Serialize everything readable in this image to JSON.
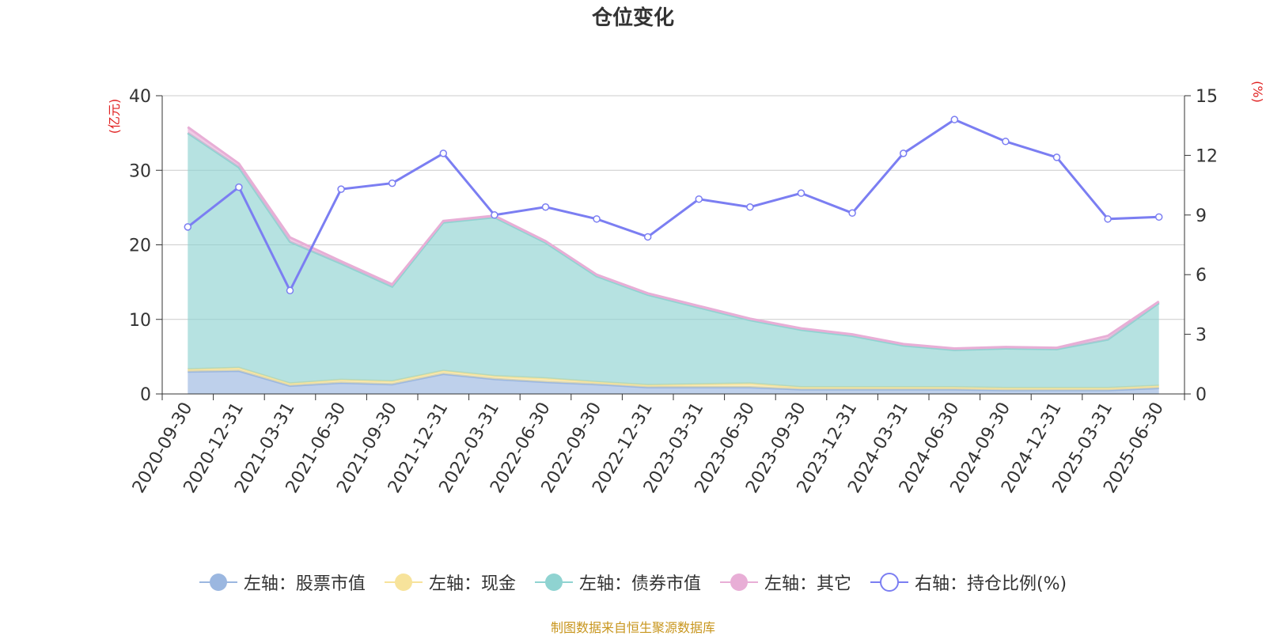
{
  "chart_data": {
    "type": "area",
    "title": "仓位变化",
    "left_axis": {
      "label": "(亿元)",
      "min": 0,
      "max": 40,
      "ticks": [
        0,
        10,
        20,
        30,
        40
      ]
    },
    "right_axis": {
      "label": "(%)",
      "min": 0,
      "max": 15,
      "ticks": [
        0,
        3,
        6,
        9,
        12,
        15
      ]
    },
    "categories": [
      "2020-09-30",
      "2020-12-31",
      "2021-03-31",
      "2021-06-30",
      "2021-09-30",
      "2021-12-31",
      "2022-03-31",
      "2022-06-30",
      "2022-09-30",
      "2022-12-31",
      "2023-03-31",
      "2023-06-30",
      "2023-09-30",
      "2023-12-31",
      "2024-03-31",
      "2024-06-30",
      "2024-09-30",
      "2024-12-31",
      "2025-03-31",
      "2025-06-30"
    ],
    "stacked_series": [
      {
        "name": "左轴：股票市值",
        "color": "#9bb7e0",
        "values": [
          3.0,
          3.1,
          1.1,
          1.5,
          1.3,
          2.7,
          2.0,
          1.6,
          1.3,
          0.9,
          0.9,
          0.9,
          0.6,
          0.6,
          0.6,
          0.6,
          0.5,
          0.5,
          0.5,
          0.8
        ]
      },
      {
        "name": "左轴：现金",
        "color": "#f7e39b",
        "values": [
          0.3,
          0.4,
          0.3,
          0.4,
          0.4,
          0.4,
          0.4,
          0.5,
          0.3,
          0.3,
          0.4,
          0.5,
          0.3,
          0.3,
          0.3,
          0.3,
          0.3,
          0.3,
          0.3,
          0.3
        ]
      },
      {
        "name": "左轴：债券市值",
        "color": "#8fd3d1",
        "values": [
          31.7,
          26.9,
          19.0,
          15.6,
          12.7,
          19.9,
          21.3,
          18.2,
          14.2,
          12.1,
          10.3,
          8.5,
          7.7,
          6.9,
          5.6,
          5.0,
          5.3,
          5.2,
          6.5,
          11.1
        ]
      },
      {
        "name": "左轴：其它",
        "color": "#e8aed6",
        "values": [
          0.8,
          0.5,
          0.6,
          0.3,
          0.3,
          0.2,
          0.2,
          0.2,
          0.2,
          0.2,
          0.2,
          0.2,
          0.2,
          0.2,
          0.2,
          0.2,
          0.2,
          0.2,
          0.5,
          0.2
        ]
      }
    ],
    "line_series": {
      "name": "右轴：持仓比例(%)",
      "axis": "right",
      "color": "#7b7ef2",
      "values": [
        8.4,
        10.4,
        5.2,
        10.3,
        10.6,
        12.1,
        9.0,
        9.4,
        8.8,
        7.9,
        9.8,
        9.4,
        10.1,
        9.1,
        12.1,
        13.8,
        12.7,
        11.9,
        8.8,
        8.9
      ]
    },
    "grid": true,
    "legend_position": "bottom"
  },
  "legend": [
    {
      "label": "左轴：股票市值",
      "icon": "filled-circle-icon",
      "color": "#9bb7e0"
    },
    {
      "label": "左轴：现金",
      "icon": "filled-circle-icon",
      "color": "#f7e39b"
    },
    {
      "label": "左轴：债券市值",
      "icon": "filled-circle-icon",
      "color": "#8fd3d1"
    },
    {
      "label": "左轴：其它",
      "icon": "filled-circle-icon",
      "color": "#e8aed6"
    },
    {
      "label": "右轴：持仓比例(%)",
      "icon": "hollow-circle-icon",
      "color": "#7b7ef2"
    }
  ],
  "source": "制图数据来自恒生聚源数据库",
  "colors": {
    "axis_label": "#e02020",
    "grid": "#cccccc",
    "axis": "#333333",
    "text": "#333333"
  }
}
